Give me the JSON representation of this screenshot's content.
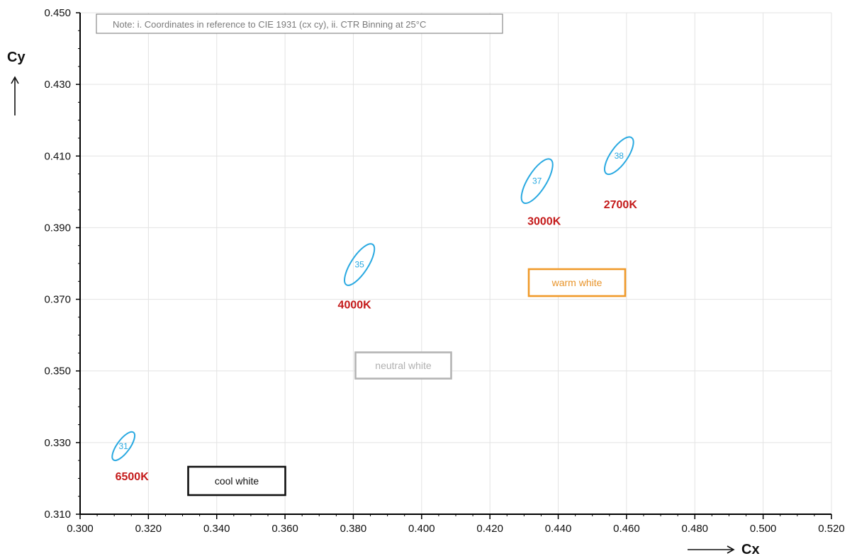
{
  "chart_data": {
    "type": "scatter",
    "xlabel": "Cx",
    "ylabel": "Cy",
    "xlim": [
      0.3,
      0.52
    ],
    "ylim": [
      0.31,
      0.45
    ],
    "x_ticks": [
      "0.300",
      "0.320",
      "0.340",
      "0.360",
      "0.380",
      "0.400",
      "0.420",
      "0.440",
      "0.460",
      "0.480",
      "0.500",
      "0.520"
    ],
    "y_ticks": [
      "0.450",
      "0.430",
      "0.410",
      "0.390",
      "0.370",
      "0.350",
      "0.330",
      "0.310"
    ],
    "grid": true,
    "note": "Note: i. Coordinates in reference to CIE 1931 (cx cy), ii. CTR Binning at 25°C",
    "bins": [
      {
        "label": "31",
        "cct": "6500K",
        "cx": 0.3127,
        "cy": 0.329
      },
      {
        "label": "35",
        "cct": "4000K",
        "cx": 0.3818,
        "cy": 0.3797
      },
      {
        "label": "37",
        "cct": "3000K",
        "cx": 0.4338,
        "cy": 0.403
      },
      {
        "label": "38",
        "cct": "2700K",
        "cx": 0.4578,
        "cy": 0.4101
      }
    ],
    "regions": [
      {
        "label": "cool white",
        "color": "#111111"
      },
      {
        "label": "neutral white",
        "color": "#b4b4b4"
      },
      {
        "label": "warm white",
        "color": "#f09a2a"
      }
    ],
    "colors": {
      "bin": "#29a9e1",
      "cct": "#c41a1a",
      "axis": "#000000",
      "grid": "#e3e3e3"
    }
  }
}
